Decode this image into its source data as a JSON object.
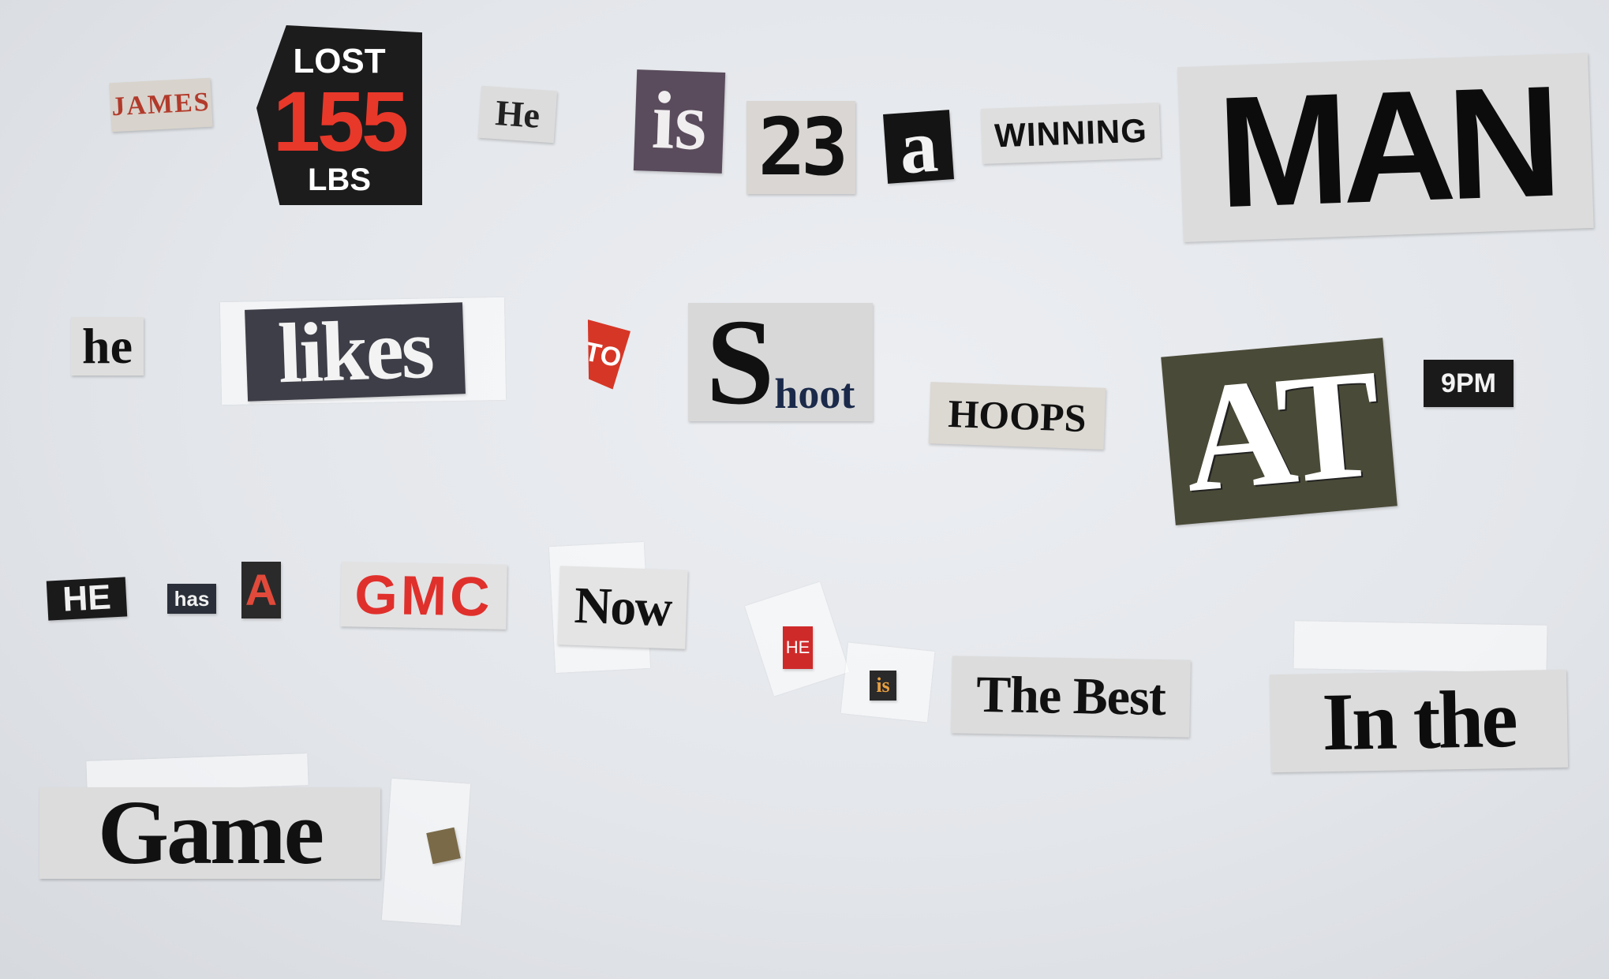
{
  "clippings": {
    "james": "JAMES",
    "lost": {
      "line1": "LOST",
      "line2": "155",
      "line3": "LBS"
    },
    "he1": "He",
    "is1": "is",
    "twentythree": "23",
    "a1": "a",
    "winning": "WINNING",
    "man": "MAN",
    "he2": "he",
    "likes": "likes",
    "to": "TO",
    "shoot_s": "S",
    "shoot_rest": "hoot",
    "hoops": "HOOPS",
    "at": "AT",
    "ninepm": "9PM",
    "he3": "HE",
    "has": "has",
    "a2": "A",
    "gmc": "GMC",
    "now": "Now",
    "he4": "HE",
    "is2": "is",
    "the_best": "The Best",
    "in_the": "In the",
    "game": "Game"
  },
  "colors": {
    "paper": "#e5e7eb",
    "red_accent": "#e8382a",
    "dark_clip": "#1c1c1c"
  }
}
